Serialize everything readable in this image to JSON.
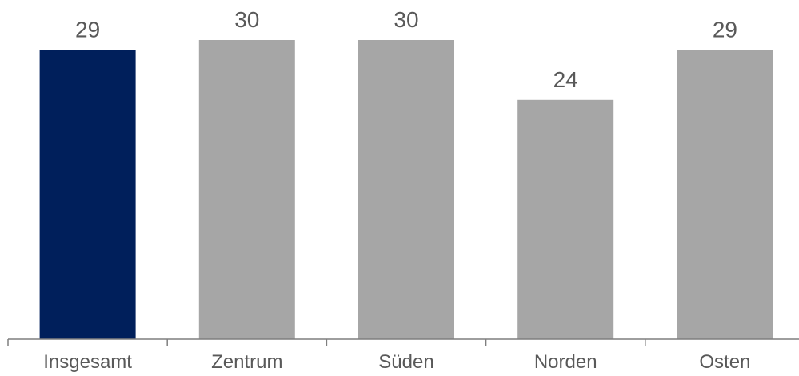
{
  "chart_data": {
    "type": "bar",
    "categories": [
      "Insgesamt",
      "Zentrum",
      "Süden",
      "Norden",
      "Osten"
    ],
    "values": [
      29,
      30,
      30,
      24,
      29
    ],
    "title": "",
    "xlabel": "",
    "ylabel": "",
    "ylim": [
      0,
      30
    ],
    "grid": false,
    "legend": "none",
    "colors": {
      "highlight": "#001F5B",
      "default": "#A6A6A6",
      "axis": "#7F7F7F",
      "text": "#595959"
    },
    "highlight_index": 0
  }
}
